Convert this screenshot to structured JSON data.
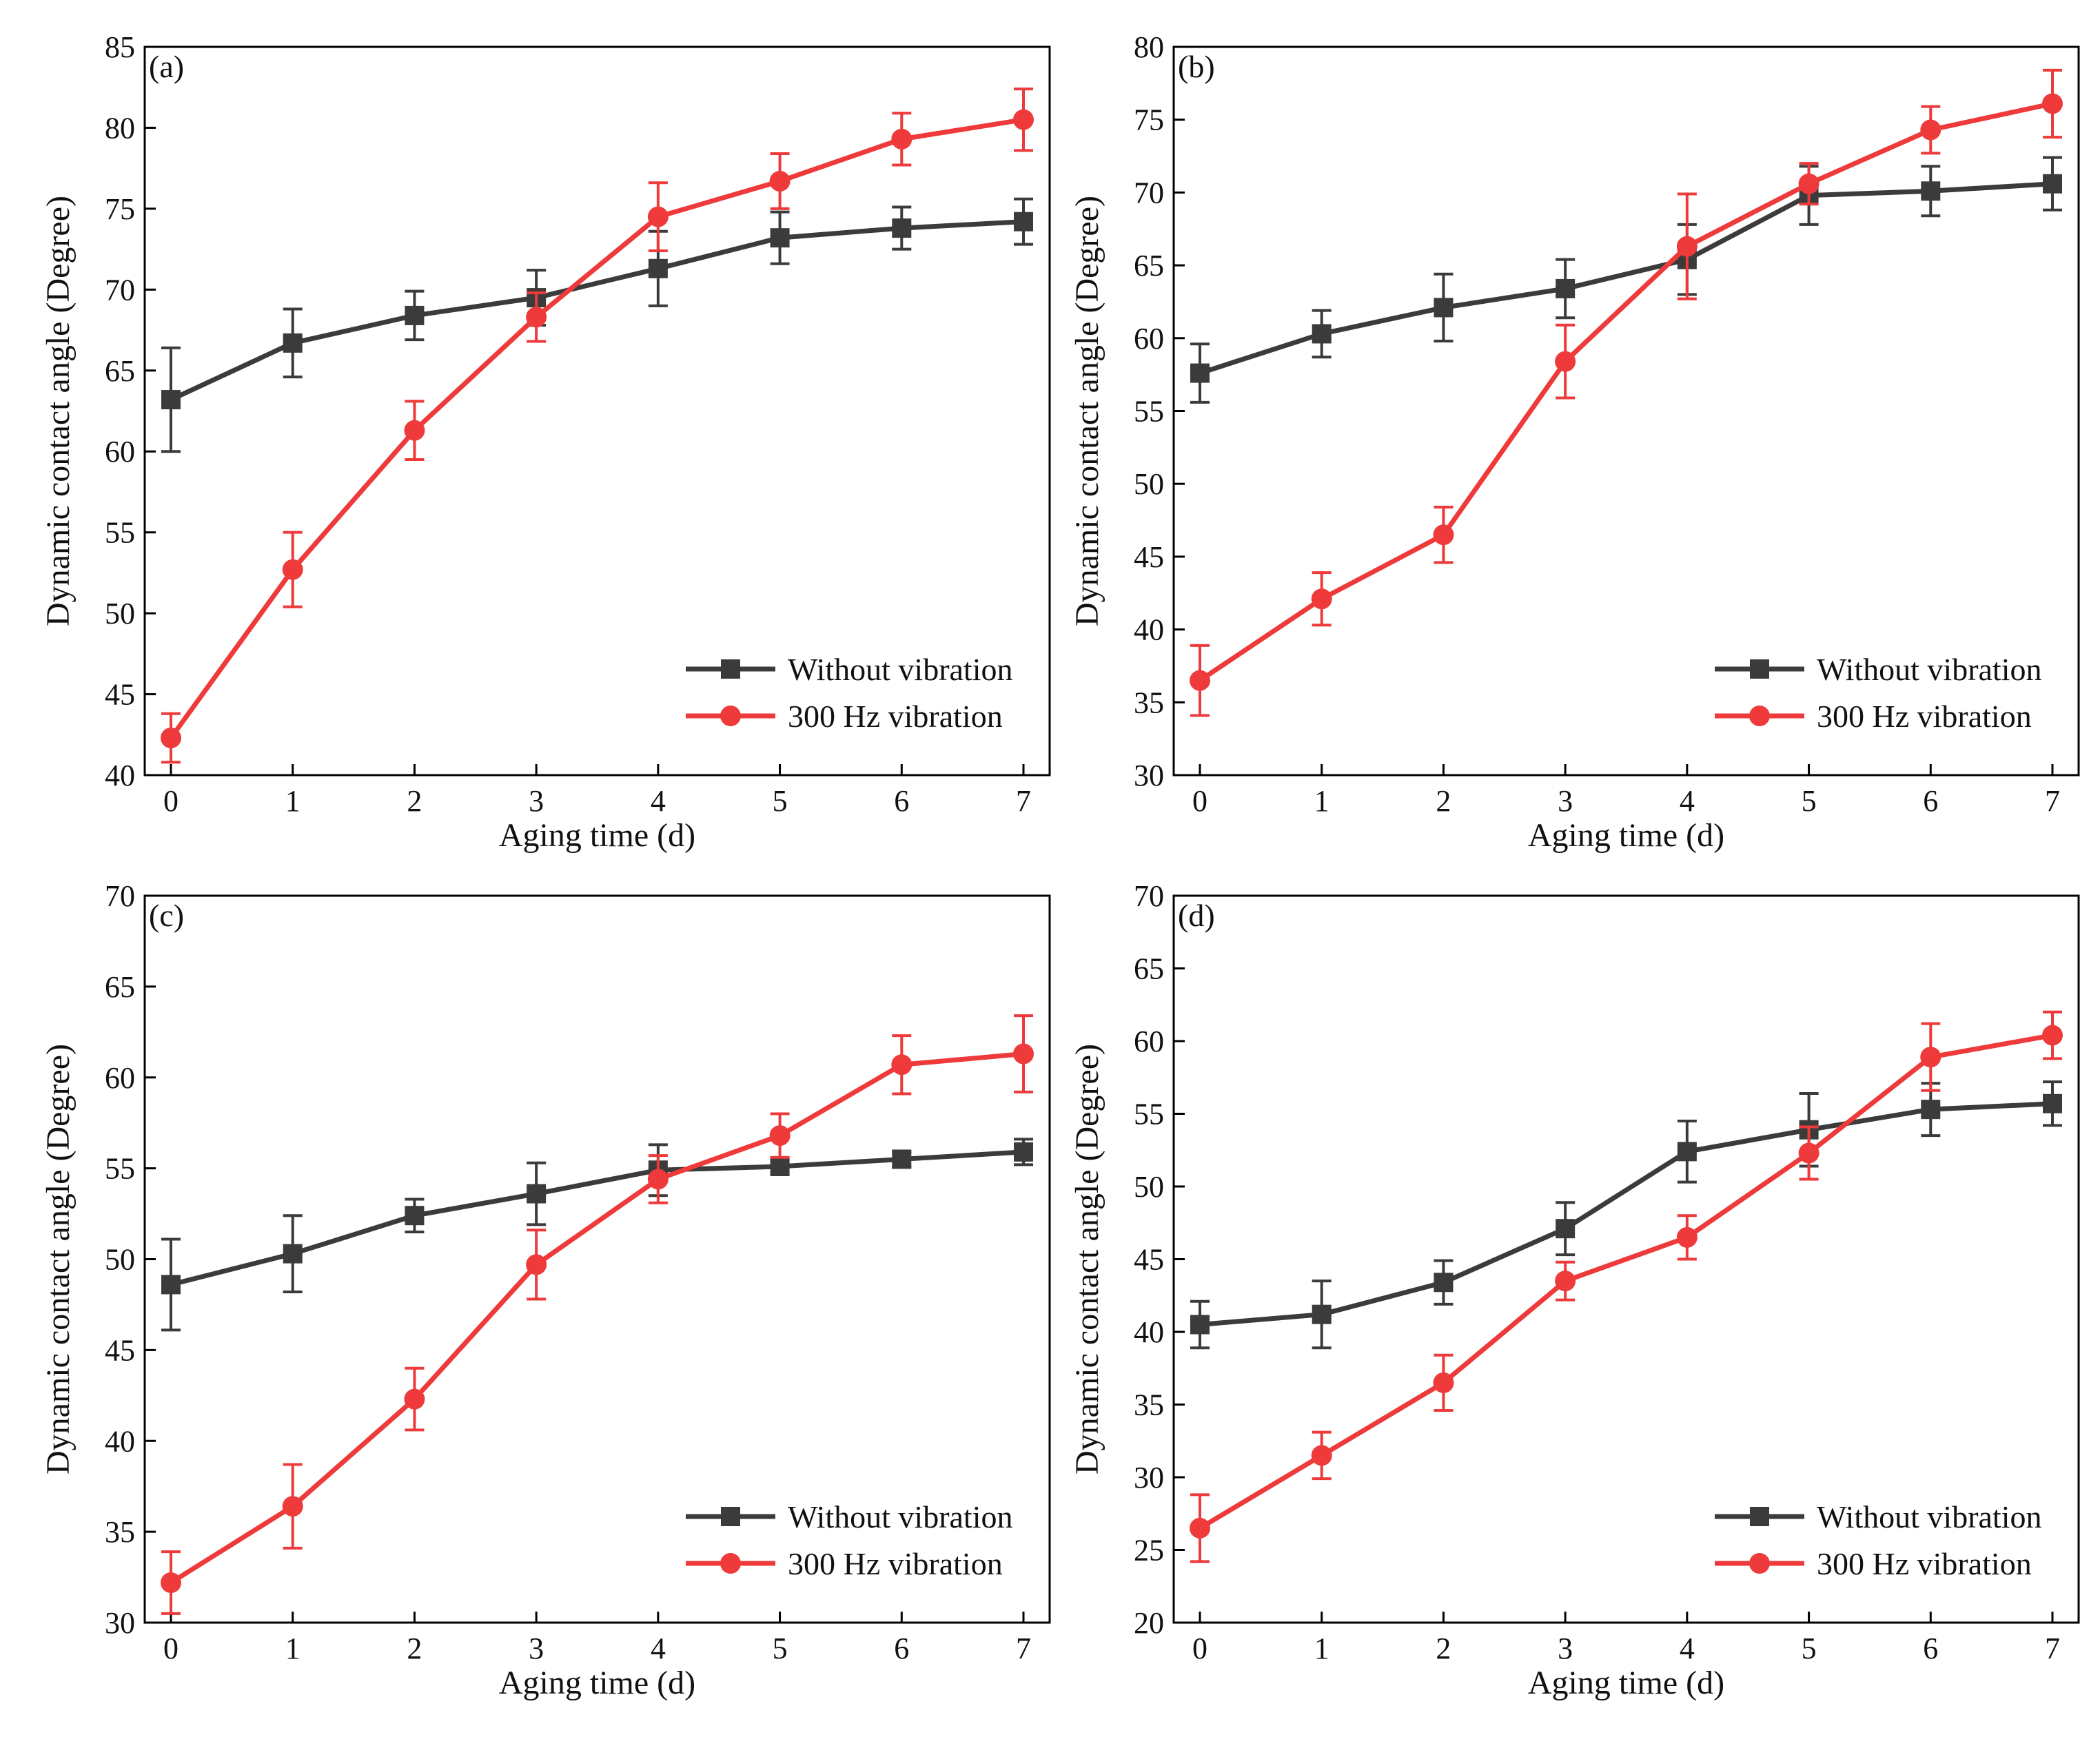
{
  "figure": {
    "x_tick_labels": [
      "0",
      "1",
      "2",
      "3",
      "4",
      "5",
      "6",
      "7"
    ]
  },
  "colors": {
    "without": "#3b3b3b",
    "vibration": "#ee3a3a",
    "axis": "#000000",
    "background": "#ffffff"
  },
  "chart_data": [
    {
      "type": "line",
      "panel_label": "(a)",
      "xlabel": "Aging time (d)",
      "ylabel": "Dynamic contact angle (Degree)",
      "xlim": [
        0,
        7
      ],
      "ylim": [
        40,
        85
      ],
      "yticks": [
        "40",
        "45",
        "50",
        "55",
        "60",
        "65",
        "70",
        "75",
        "80",
        "85"
      ],
      "x": [
        0,
        1,
        2,
        3,
        4,
        5,
        6,
        7
      ],
      "legend_position": "bottom-right",
      "series": [
        {
          "key": "without",
          "name": "Without vibration",
          "marker": "square",
          "values": [
            63.2,
            66.7,
            68.4,
            69.5,
            71.3,
            73.2,
            73.8,
            74.2
          ],
          "errors": [
            3.2,
            2.1,
            1.5,
            1.7,
            2.3,
            1.6,
            1.3,
            1.4
          ]
        },
        {
          "key": "vibration",
          "name": "300 Hz vibration",
          "marker": "circle",
          "values": [
            42.3,
            52.7,
            61.3,
            68.3,
            74.5,
            76.7,
            79.3,
            80.5
          ],
          "errors": [
            1.5,
            2.3,
            1.8,
            1.5,
            2.1,
            1.7,
            1.6,
            1.9
          ]
        }
      ]
    },
    {
      "type": "line",
      "panel_label": "(b)",
      "xlabel": "Aging time (d)",
      "ylabel": "Dynamic contact angle (Degree)",
      "xlim": [
        0,
        7
      ],
      "ylim": [
        30,
        80
      ],
      "yticks": [
        "30",
        "35",
        "40",
        "45",
        "50",
        "55",
        "60",
        "65",
        "70",
        "75",
        "80"
      ],
      "x": [
        0,
        1,
        2,
        3,
        4,
        5,
        6,
        7
      ],
      "legend_position": "bottom-right",
      "series": [
        {
          "key": "without",
          "name": "Without vibration",
          "marker": "square",
          "values": [
            57.6,
            60.3,
            62.1,
            63.4,
            65.4,
            69.8,
            70.1,
            70.6
          ],
          "errors": [
            2.0,
            1.6,
            2.3,
            2.0,
            2.4,
            2.0,
            1.7,
            1.8
          ]
        },
        {
          "key": "vibration",
          "name": "300 Hz vibration",
          "marker": "circle",
          "values": [
            36.5,
            42.1,
            46.5,
            58.4,
            66.3,
            70.6,
            74.3,
            76.1
          ],
          "errors": [
            2.4,
            1.8,
            1.9,
            2.5,
            3.6,
            1.4,
            1.6,
            2.3
          ]
        }
      ]
    },
    {
      "type": "line",
      "panel_label": "(c)",
      "xlabel": "Aging time (d)",
      "ylabel": "Dynamic contact angle (Degree)",
      "xlim": [
        0,
        7
      ],
      "ylim": [
        30,
        70
      ],
      "yticks": [
        "30",
        "35",
        "40",
        "45",
        "50",
        "55",
        "60",
        "65",
        "70"
      ],
      "x": [
        0,
        1,
        2,
        3,
        4,
        5,
        6,
        7
      ],
      "legend_position": "bottom-right",
      "series": [
        {
          "key": "without",
          "name": "Without vibration",
          "marker": "square",
          "values": [
            48.6,
            50.3,
            52.4,
            53.6,
            54.9,
            55.1,
            55.5,
            55.9
          ],
          "errors": [
            2.5,
            2.1,
            0.9,
            1.7,
            1.4,
            0.4,
            0.4,
            0.7
          ]
        },
        {
          "key": "vibration",
          "name": "300 Hz vibration",
          "marker": "circle",
          "values": [
            32.2,
            36.4,
            42.3,
            49.7,
            54.4,
            56.8,
            60.7,
            61.3
          ],
          "errors": [
            1.7,
            2.3,
            1.7,
            1.9,
            1.3,
            1.2,
            1.6,
            2.1
          ]
        }
      ]
    },
    {
      "type": "line",
      "panel_label": "(d)",
      "xlabel": "Aging time (d)",
      "ylabel": "Dynamic contact angle (Degree)",
      "xlim": [
        0,
        7
      ],
      "ylim": [
        20,
        70
      ],
      "yticks": [
        "20",
        "25",
        "30",
        "35",
        "40",
        "45",
        "50",
        "55",
        "60",
        "65",
        "70"
      ],
      "x": [
        0,
        1,
        2,
        3,
        4,
        5,
        6,
        7
      ],
      "legend_position": "bottom-right",
      "series": [
        {
          "key": "without",
          "name": "Without vibration",
          "marker": "square",
          "values": [
            40.5,
            41.2,
            43.4,
            47.1,
            52.4,
            53.9,
            55.3,
            55.7
          ],
          "errors": [
            1.6,
            2.3,
            1.5,
            1.8,
            2.1,
            2.5,
            1.8,
            1.5
          ]
        },
        {
          "key": "vibration",
          "name": "300 Hz vibration",
          "marker": "circle",
          "values": [
            26.5,
            31.5,
            36.5,
            43.5,
            46.5,
            52.3,
            58.9,
            60.4
          ],
          "errors": [
            2.3,
            1.6,
            1.9,
            1.3,
            1.5,
            1.8,
            2.3,
            1.6
          ]
        }
      ]
    }
  ]
}
